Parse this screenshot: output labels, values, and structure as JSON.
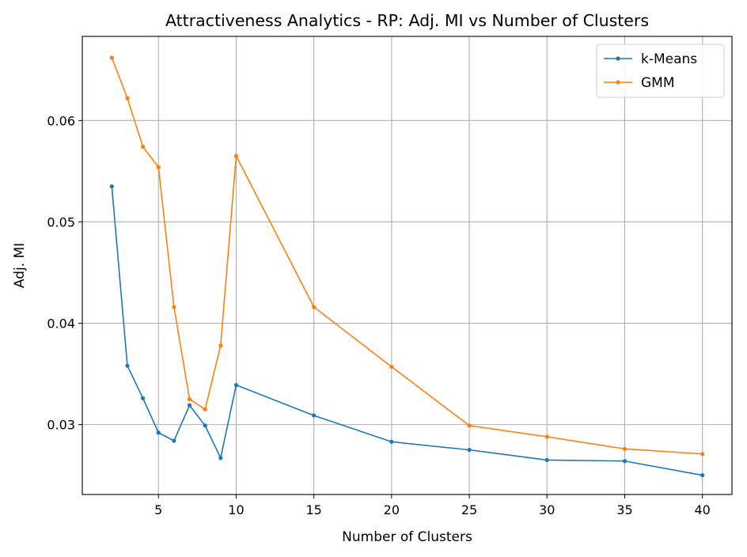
{
  "chart_data": {
    "type": "line",
    "title": "Attractiveness Analytics - RP: Adj. MI vs Number of Clusters",
    "xlabel": "Number of Clusters",
    "ylabel": "Adj. MI",
    "xlim": [
      0.1,
      41.9
    ],
    "ylim": [
      0.0231,
      0.0683
    ],
    "xticks": [
      5,
      10,
      15,
      20,
      25,
      30,
      35,
      40
    ],
    "xtick_labels": [
      "5",
      "10",
      "15",
      "20",
      "25",
      "30",
      "35",
      "40"
    ],
    "yticks": [
      0.03,
      0.04,
      0.05,
      0.06
    ],
    "ytick_labels": [
      "0.03",
      "0.04",
      "0.05",
      "0.06"
    ],
    "grid": true,
    "legend_position": "top-right",
    "x": [
      2,
      3,
      4,
      5,
      6,
      7,
      8,
      9,
      10,
      15,
      20,
      25,
      30,
      35,
      40
    ],
    "series": [
      {
        "name": "k-Means",
        "color": "#1f77b4",
        "values": [
          0.0535,
          0.0358,
          0.0326,
          0.0292,
          0.0284,
          0.0319,
          0.0299,
          0.0267,
          0.0339,
          0.0309,
          0.0283,
          0.0275,
          0.0265,
          0.0264,
          0.025
        ]
      },
      {
        "name": "GMM",
        "color": "#ff7f0e",
        "values": [
          0.0662,
          0.0622,
          0.0574,
          0.0554,
          0.0416,
          0.0325,
          0.0315,
          0.0378,
          0.0565,
          0.0416,
          0.0357,
          0.0299,
          0.0288,
          0.0276,
          0.0271
        ]
      }
    ]
  }
}
